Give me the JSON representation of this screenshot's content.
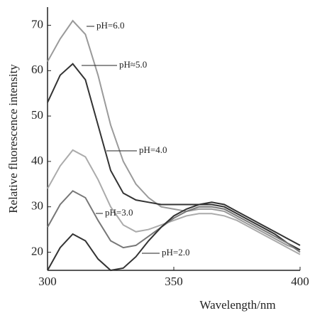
{
  "chart_data": {
    "type": "line",
    "x_label": "Wavelength/nm",
    "y_label": "Relative fluorescence intensity",
    "x": [
      300,
      305,
      310,
      315,
      320,
      325,
      330,
      335,
      340,
      345,
      350,
      355,
      360,
      365,
      370,
      375,
      380,
      385,
      390,
      395,
      400
    ],
    "series": [
      {
        "name": "pH=6.0",
        "color": "#9a9a9a",
        "values": [
          62,
          67,
          71,
          68,
          59,
          48,
          40,
          35,
          32,
          30,
          29.5,
          29,
          29.5,
          29.5,
          29,
          27.5,
          26,
          24.5,
          23,
          21.5,
          20.5
        ]
      },
      {
        "name": "pH≈5.0",
        "color": "#333333",
        "values": [
          53,
          59,
          61.5,
          58,
          48,
          38,
          33,
          31.5,
          31,
          30.5,
          30.5,
          30.5,
          30.5,
          30.5,
          30,
          28.5,
          27,
          25.5,
          24,
          22,
          20.5
        ]
      },
      {
        "name": "pH=4.0",
        "color": "#ababab",
        "values": [
          34,
          39,
          42.5,
          41,
          36,
          30,
          26,
          24.5,
          25,
          26,
          27,
          28,
          28.5,
          28.5,
          28,
          27,
          25.5,
          24,
          22.5,
          21,
          19.5
        ]
      },
      {
        "name": "pH=3.0",
        "color": "#777777",
        "values": [
          25.5,
          30.5,
          33.5,
          32,
          27,
          22.5,
          21,
          21.5,
          23.5,
          25.5,
          27.5,
          29,
          30,
          30,
          29.5,
          28,
          26.5,
          25,
          23.5,
          22,
          20
        ]
      },
      {
        "name": "pH=2.0",
        "color": "#333333",
        "values": [
          16,
          21,
          24,
          22.5,
          18.5,
          16,
          16.5,
          19,
          22.5,
          25.5,
          28,
          29.5,
          30.5,
          31,
          30.5,
          29,
          27.5,
          26,
          24.5,
          23,
          21.5
        ]
      }
    ],
    "xlim": [
      300,
      400
    ],
    "xticks": [
      300,
      350,
      400
    ],
    "ylim": [
      16,
      74
    ],
    "yticks": [
      20,
      30,
      40,
      50,
      60,
      70
    ]
  }
}
